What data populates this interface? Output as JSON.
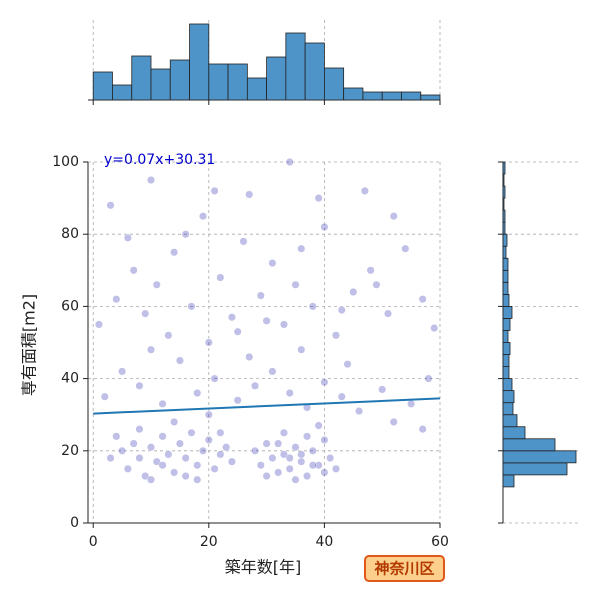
{
  "chart_data": {
    "type": "scatter",
    "xlabel": "築年数[年]",
    "ylabel": "専有面積[m2]",
    "annotation": "y=0.07x+30.31",
    "badge": "神奈川区",
    "xlim": [
      -0.9,
      60
    ],
    "ylim": [
      0,
      100
    ],
    "xticks": [
      0,
      20,
      40,
      60
    ],
    "yticks": [
      0,
      20,
      40,
      60,
      80,
      100
    ],
    "grid": true,
    "color": "#1a1aa8",
    "x": [
      5,
      6,
      7,
      8,
      9,
      10,
      11,
      12,
      13,
      14,
      15,
      16,
      17,
      18,
      19,
      20,
      21,
      22,
      23,
      24,
      8,
      10,
      14,
      18,
      20,
      3,
      4,
      12,
      16,
      22,
      28,
      29,
      30,
      31,
      32,
      33,
      34,
      35,
      36,
      37,
      38,
      39,
      40,
      41,
      42,
      33,
      35,
      37,
      30,
      39,
      36,
      34,
      38,
      32,
      40,
      2,
      5,
      8,
      12,
      15,
      18,
      21,
      25,
      28,
      31,
      34,
      37,
      40,
      43,
      46,
      50,
      55,
      58,
      27,
      36,
      44,
      10,
      20,
      52,
      57,
      1,
      4,
      7,
      9,
      11,
      14,
      17,
      19,
      22,
      24,
      26,
      29,
      31,
      33,
      35,
      38,
      40,
      42,
      45,
      48,
      51,
      54,
      57,
      59,
      3,
      10,
      16,
      21,
      27,
      34,
      39,
      47,
      52,
      6,
      13,
      30,
      43,
      49,
      25,
      36
    ],
    "values": [
      20,
      15,
      22,
      18,
      13,
      21,
      17,
      24,
      19,
      14,
      22,
      18,
      25,
      16,
      20,
      23,
      15,
      19,
      21,
      17,
      26,
      12,
      28,
      12,
      30,
      18,
      24,
      16,
      13,
      25,
      20,
      16,
      22,
      18,
      14,
      19,
      15,
      21,
      17,
      13,
      20,
      16,
      23,
      18,
      15,
      25,
      12,
      24,
      13,
      27,
      19,
      18,
      16,
      22,
      14,
      35,
      42,
      38,
      33,
      45,
      36,
      40,
      34,
      38,
      42,
      36,
      32,
      39,
      35,
      31,
      37,
      33,
      40,
      46,
      48,
      44,
      48,
      50,
      28,
      26,
      55,
      62,
      70,
      58,
      66,
      75,
      60,
      85,
      68,
      57,
      78,
      63,
      72,
      55,
      66,
      60,
      82,
      52,
      64,
      70,
      58,
      76,
      62,
      54,
      88,
      95,
      80,
      92,
      91,
      100,
      90,
      92,
      85,
      79,
      52,
      56,
      59,
      66,
      53,
      76
    ],
    "regression": {
      "color": "#1f77b4",
      "x": [
        0,
        60
      ],
      "values": [
        30.31,
        34.51
      ]
    },
    "top_hist": {
      "color": "#4f94c8",
      "bins": [
        0,
        3.33,
        6.67,
        10,
        13.33,
        16.67,
        20,
        23.33,
        26.67,
        30,
        33.33,
        36.67,
        40,
        43.33,
        46.67,
        50,
        53.33,
        56.67,
        60
      ],
      "counts": [
        28,
        15,
        44,
        31,
        40,
        76,
        36,
        36,
        22,
        43,
        67,
        57,
        32,
        12,
        8,
        8,
        8,
        5
      ],
      "ylim": [
        0,
        80
      ]
    },
    "right_hist": {
      "color": "#4f94c8",
      "bins": [
        10,
        13.33,
        16.67,
        20,
        23.33,
        26.67,
        30,
        33.33,
        36.67,
        40,
        43.33,
        46.67,
        50,
        53.33,
        56.67,
        60,
        63.33,
        66.67,
        70,
        73.33,
        76.67,
        80,
        83.33,
        86.67,
        90,
        93.33,
        96.67,
        100
      ],
      "counts": [
        11,
        64,
        73,
        52,
        22,
        14,
        10,
        11,
        9,
        6,
        6,
        7,
        5,
        7,
        9,
        6,
        5,
        5,
        5,
        3,
        4,
        2,
        2,
        1,
        2,
        1,
        2
      ],
      "xlim": [
        0,
        77
      ]
    }
  }
}
